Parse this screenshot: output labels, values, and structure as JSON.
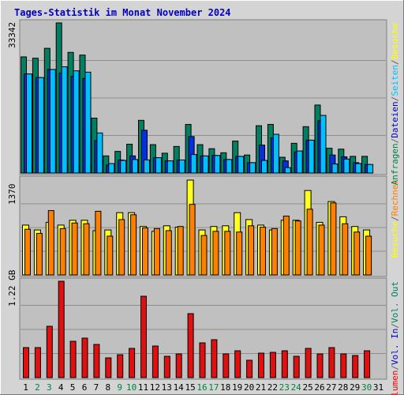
{
  "chart_data": {
    "title": "Tages-Statistik im Monat November 2024",
    "type": "bar",
    "categories": [
      "1",
      "2",
      "3",
      "4",
      "5",
      "6",
      "7",
      "8",
      "9",
      "10",
      "11",
      "12",
      "13",
      "14",
      "15",
      "16",
      "17",
      "18",
      "19",
      "20",
      "21",
      "22",
      "23",
      "24",
      "25",
      "26",
      "27",
      "28",
      "29",
      "30",
      "31"
    ],
    "weekend_days": [
      "2",
      "3",
      "9",
      "10",
      "16",
      "17",
      "23",
      "24",
      "30"
    ],
    "panels": [
      {
        "id": "top",
        "ymax_label": "33342",
        "ymax": 33342,
        "side_labels": [
          {
            "text": "Anfragen",
            "color": "#008040"
          },
          {
            "text": "/",
            "color": "#606060"
          },
          {
            "text": "Dateien",
            "color": "#0000c0"
          },
          {
            "text": "/",
            "color": "#606060"
          },
          {
            "text": "Seiten",
            "color": "#00c0ff"
          },
          {
            "text": "/",
            "color": "#606060"
          },
          {
            "text": "Besuche",
            "color": "#ffff00"
          }
        ],
        "series": [
          {
            "name": "Anfragen",
            "color": "#008060",
            "values": [
              25800,
              25500,
              27700,
              33342,
              26800,
              26200,
              12200,
              3800,
              4800,
              6400,
              11700,
              6300,
              4400,
              5900,
              10800,
              6300,
              5400,
              4500,
              7100,
              4000,
              10500,
              10800,
              3500,
              6600,
              10300,
              15100,
              5500,
              5300,
              3700,
              3700,
              0
            ]
          },
          {
            "name": "Dateien",
            "color": "#0030e0",
            "values": [
              22000,
              21200,
              23000,
              22200,
              21500,
              21000,
              7200,
              1800,
              2900,
              3800,
              9500,
              3400,
              2700,
              2900,
              8100,
              3800,
              3900,
              3000,
              3700,
              2300,
              6200,
              7800,
              2700,
              4700,
              7300,
              11600,
              4000,
              3600,
              2300,
              1900,
              0
            ]
          },
          {
            "name": "Seiten",
            "color": "#00c0ff",
            "values": [
              22000,
              21200,
              23000,
              23600,
              22700,
              22400,
              8900,
              2100,
              2800,
              3000,
              2900,
              3400,
              2700,
              2900,
              4100,
              3800,
              3900,
              3000,
              3700,
              2300,
              2800,
              8600,
              1200,
              4900,
              7300,
              12800,
              2000,
              3100,
              2100,
              1900,
              0
            ]
          }
        ]
      },
      {
        "id": "middle",
        "ymax_label": "1370",
        "ymax": 1370,
        "side_labels": [
          {
            "text": "Besuche",
            "color": "#ffff00"
          },
          {
            "text": "/",
            "color": "#606060"
          },
          {
            "text": "Rechner",
            "color": "#ff8000"
          }
        ],
        "series": [
          {
            "name": "Besuche",
            "color": "#ffff20",
            "values": [
              720,
              650,
              760,
              720,
              790,
              790,
              640,
              650,
              900,
              900,
              700,
              630,
              710,
              690,
              1370,
              650,
              700,
              710,
              900,
              800,
              720,
              650,
              790,
              790,
              1220,
              760,
              1060,
              840,
              700,
              650,
              0
            ]
          },
          {
            "name": "Rechner",
            "color": "#ff8000",
            "values": [
              660,
              600,
              930,
              670,
              750,
              740,
              920,
              560,
              800,
              870,
              680,
              670,
              640,
              700,
              1020,
              570,
              630,
              630,
              620,
              710,
              690,
              670,
              850,
              780,
              950,
              720,
              1040,
              740,
              620,
              560,
              0
            ]
          }
        ]
      },
      {
        "id": "bottom",
        "ymax_label": "1.22 GB",
        "ymax": 1.22,
        "side_labels": [
          {
            "text": "Volumen",
            "color": "#ff0000"
          },
          {
            "text": "/",
            "color": "#606060"
          },
          {
            "text": "Vol. In",
            "color": "#0000c0"
          },
          {
            "text": "/",
            "color": "#606060"
          },
          {
            "text": "Vol. Out",
            "color": "#008060"
          }
        ],
        "series": [
          {
            "name": "Volumen",
            "color": "#e01010",
            "values": [
              0.38,
              0.38,
              0.65,
              1.22,
              0.46,
              0.5,
              0.42,
              0.25,
              0.29,
              0.37,
              1.03,
              0.4,
              0.27,
              0.3,
              0.81,
              0.44,
              0.48,
              0.3,
              0.34,
              0.22,
              0.31,
              0.32,
              0.34,
              0.27,
              0.37,
              0.3,
              0.38,
              0.3,
              0.28,
              0.34,
              0
            ]
          }
        ]
      }
    ]
  }
}
